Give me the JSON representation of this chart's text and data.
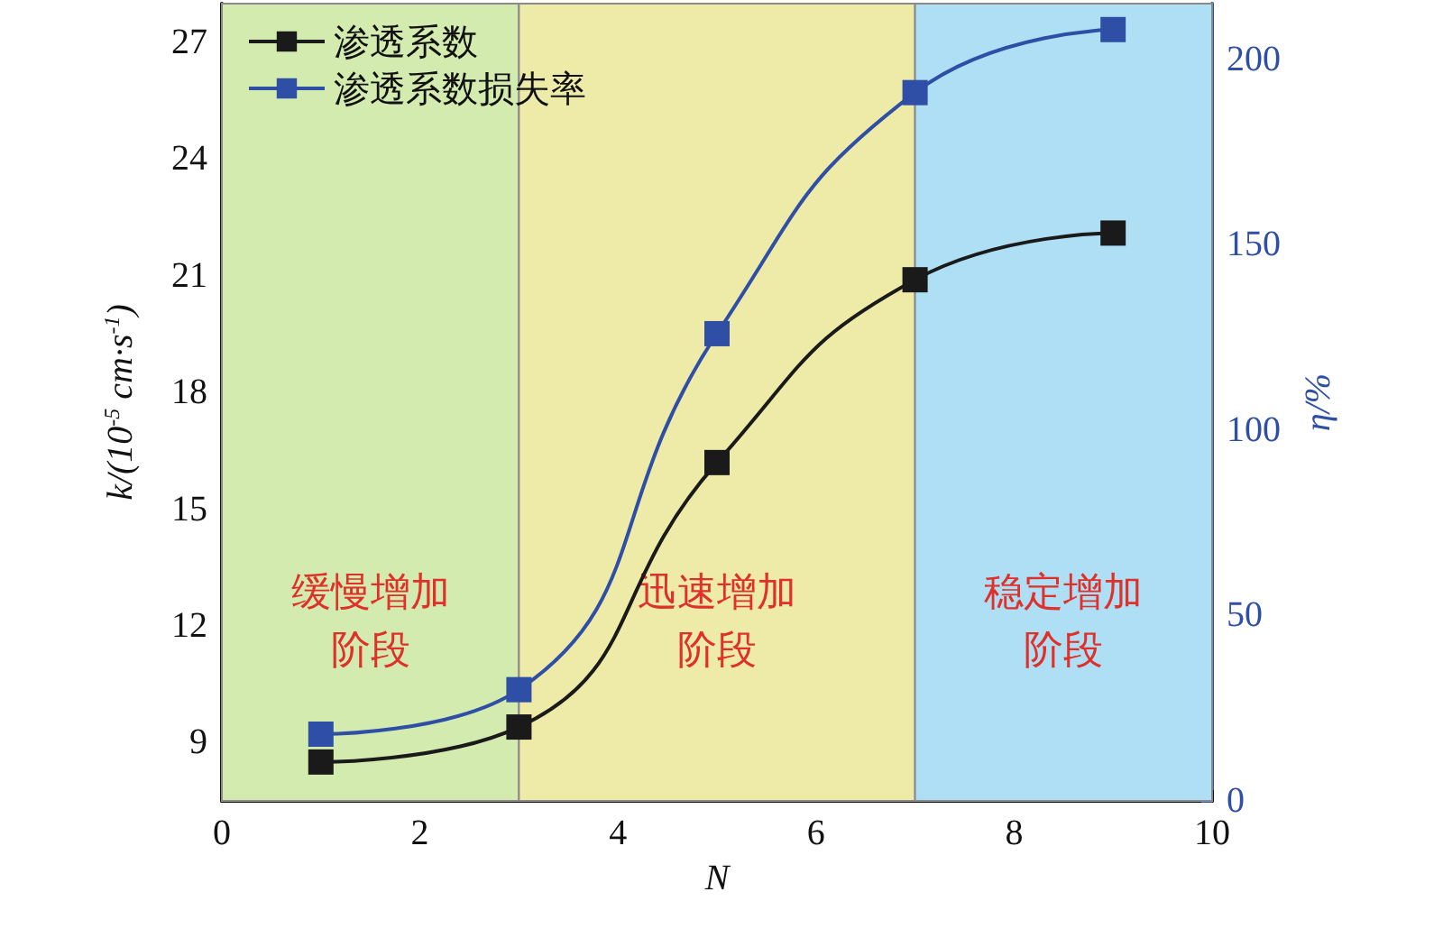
{
  "chart_data": {
    "type": "line",
    "xlabel": "N",
    "ylabel": "k/(10$^{-5}$ cm·s$^{-1}$)",
    "y2label": "η/%",
    "x": [
      1,
      3,
      5,
      7,
      9
    ],
    "series": [
      {
        "name": "渗透系数",
        "color": "#1a1a1a",
        "values": [
          8.5,
          9.4,
          16.2,
          20.9,
          22.1
        ]
      },
      {
        "name": "渗透系数损失率",
        "color": "#2e4fa5",
        "axis": "y2",
        "values": [
          18,
          30,
          126,
          191,
          208
        ]
      }
    ],
    "xlim": [
      0,
      10
    ],
    "xticks": [
      0,
      2,
      4,
      6,
      8,
      10
    ],
    "ylim": [
      7.5,
      28
    ],
    "yticks": [
      9,
      12,
      15,
      18,
      21,
      24,
      27
    ],
    "y2lim": [
      0,
      215
    ],
    "y2ticks": [
      0,
      50,
      100,
      150,
      200
    ],
    "bands": [
      {
        "axis": "x",
        "from": 0,
        "to": 3,
        "label": "缓慢增加阶段",
        "color": "#d4ebb0"
      },
      {
        "axis": "x",
        "from": 3,
        "to": 7,
        "label": "迅速增加阶段",
        "color": "#eeeaa8"
      },
      {
        "axis": "x",
        "from": 7,
        "to": 10,
        "label": "稳定增加阶段",
        "color": "#aedff5"
      }
    ],
    "legend": "top left",
    "marker": "square",
    "line_style": "solid"
  }
}
